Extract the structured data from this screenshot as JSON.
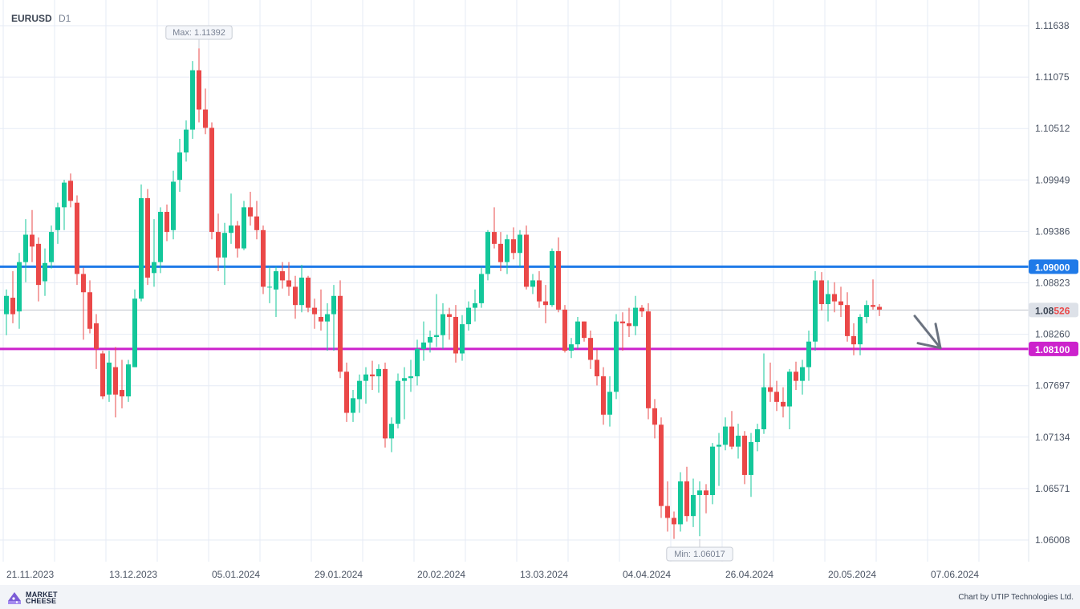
{
  "header": {
    "symbol": "EURUSD",
    "timeframe": "D1"
  },
  "footer": {
    "logo_line1": "MARKET",
    "logo_line2": "CHEESE",
    "credit": "Chart by UTIP Technologies Ltd."
  },
  "chart_data": {
    "type": "candlestick",
    "y_axis": {
      "range": [
        1.0583,
        1.1182
      ],
      "ticks": [
        1.11638,
        1.11075,
        1.10512,
        1.09949,
        1.09386,
        1.08823,
        1.0826,
        1.07697,
        1.07134,
        1.06571,
        1.06008
      ],
      "tick_labels": [
        "1.11638",
        "1.11075",
        "1.10512",
        "1.09949",
        "1.09386",
        "1.08823",
        "1.08260",
        "1.07697",
        "1.07134",
        "1.06571",
        "1.06008"
      ]
    },
    "x_axis": {
      "labels": [
        "21.11.2023",
        "13.12.2023",
        "05.01.2024",
        "29.01.2024",
        "20.02.2024",
        "13.03.2024",
        "04.04.2024",
        "26.04.2024",
        "20.05.2024",
        "07.06.2024"
      ],
      "label_bar_index": [
        0,
        16,
        32,
        48,
        64,
        80,
        96,
        112,
        128,
        144
      ],
      "total_bars": 160
    },
    "levels": [
      {
        "price": 1.09,
        "label": "1.09000",
        "color": "#1f7ae8"
      },
      {
        "price": 1.081,
        "label": "1.08100",
        "color": "#cc22cc"
      }
    ],
    "current_price": {
      "price": 1.08526,
      "label_prefix": "1.08",
      "label_suffix": "526",
      "color": "#c0c4cc"
    },
    "max_marker": {
      "label": "Max: 1.11392",
      "price": 1.11392,
      "bar_index": 30
    },
    "min_marker": {
      "label": "Min: 1.06017",
      "price": 1.06017,
      "bar_index": 108
    },
    "forecast_arrow": {
      "from_bar": 141.5,
      "from_price": 1.0846,
      "to_bar": 145.5,
      "to_price": 1.0811,
      "color": "#6b7380",
      "direction": "down"
    },
    "colors": {
      "bull": "#13c79a",
      "bear": "#ea4848",
      "grid": "#e6ebf5"
    },
    "candles": [
      [
        1.0848,
        1.0875,
        1.0825,
        1.0868
      ],
      [
        1.0866,
        1.0895,
        1.0838,
        1.0848
      ],
      [
        1.0851,
        1.0915,
        1.0832,
        1.0905
      ],
      [
        1.0905,
        1.0952,
        1.0883,
        1.0935
      ],
      [
        1.0935,
        1.0962,
        1.0905,
        1.0922
      ],
      [
        1.0925,
        1.0932,
        1.0862,
        1.088
      ],
      [
        1.0884,
        1.092,
        1.0868,
        1.0904
      ],
      [
        1.0905,
        1.0945,
        1.0898,
        1.0938
      ],
      [
        1.094,
        1.097,
        1.0925,
        1.0965
      ],
      [
        1.0965,
        1.0995,
        1.094,
        1.0992
      ],
      [
        1.0994,
        1.1002,
        1.0965,
        1.0972
      ],
      [
        1.097,
        1.0978,
        1.088,
        1.0892
      ],
      [
        1.0892,
        1.0899,
        1.082,
        1.0872
      ],
      [
        1.0872,
        1.0885,
        1.0827,
        1.0832
      ],
      [
        1.0838,
        1.0848,
        1.0788,
        1.081
      ],
      [
        1.0805,
        1.0808,
        1.0755,
        1.0758
      ],
      [
        1.076,
        1.0808,
        1.0752,
        1.0795
      ],
      [
        1.079,
        1.0812,
        1.0735,
        1.076
      ],
      [
        1.0765,
        1.0798,
        1.0745,
        1.0758
      ],
      [
        1.0758,
        1.0798,
        1.0752,
        1.0793
      ],
      [
        1.079,
        1.0875,
        1.079,
        1.0865
      ],
      [
        1.0865,
        1.099,
        1.0862,
        1.0975
      ],
      [
        1.0975,
        1.0985,
        1.088,
        1.0888
      ],
      [
        1.0893,
        1.0952,
        1.0878,
        1.0905
      ],
      [
        1.0905,
        1.0965,
        1.0893,
        1.096
      ],
      [
        1.096,
        1.0968,
        1.0928,
        1.0938
      ],
      [
        1.094,
        1.1005,
        1.093,
        1.0993
      ],
      [
        1.0995,
        1.104,
        1.0982,
        1.1025
      ],
      [
        1.1025,
        1.106,
        1.1015,
        1.105
      ],
      [
        1.105,
        1.1125,
        1.104,
        1.1115
      ],
      [
        1.1115,
        1.1139,
        1.1058,
        1.1072
      ],
      [
        1.1072,
        1.1095,
        1.1045,
        1.1052
      ],
      [
        1.1052,
        1.1058,
        1.093,
        1.0938
      ],
      [
        1.0938,
        1.0958,
        1.0895,
        1.091
      ],
      [
        1.091,
        1.0948,
        1.088,
        1.0937
      ],
      [
        1.0937,
        1.098,
        1.0925,
        1.0945
      ],
      [
        1.0945,
        1.095,
        1.091,
        1.092
      ],
      [
        1.092,
        1.0972,
        1.0918,
        1.0965
      ],
      [
        1.0965,
        1.0982,
        1.0945,
        1.0955
      ],
      [
        1.0955,
        1.0972,
        1.093,
        1.094
      ],
      [
        1.094,
        1.0945,
        1.087,
        1.0878
      ],
      [
        1.0878,
        1.09,
        1.086,
        1.0878
      ],
      [
        1.0875,
        1.09,
        1.0845,
        1.0895
      ],
      [
        1.0895,
        1.0905,
        1.0876,
        1.0885
      ],
      [
        1.0885,
        1.0905,
        1.0868,
        1.0878
      ],
      [
        1.0878,
        1.089,
        1.0843,
        1.0858
      ],
      [
        1.0858,
        1.0902,
        1.085,
        1.0888
      ],
      [
        1.0888,
        1.089,
        1.085,
        1.0855
      ],
      [
        1.0855,
        1.0865,
        1.0832,
        1.0848
      ],
      [
        1.0845,
        1.0875,
        1.083,
        1.084
      ],
      [
        1.084,
        1.086,
        1.0808,
        1.0848
      ],
      [
        1.0848,
        1.088,
        1.0808,
        1.0868
      ],
      [
        1.0868,
        1.0885,
        1.0778,
        1.0785
      ],
      [
        1.0785,
        1.0795,
        1.073,
        1.074
      ],
      [
        1.074,
        1.0765,
        1.073,
        1.0756
      ],
      [
        1.0755,
        1.0782,
        1.074,
        1.0775
      ],
      [
        1.0775,
        1.079,
        1.075,
        1.0782
      ],
      [
        1.0782,
        1.0797,
        1.0765,
        1.078
      ],
      [
        1.078,
        1.0793,
        1.0762,
        1.0788
      ],
      [
        1.0788,
        1.0795,
        1.0702,
        1.0712
      ],
      [
        1.0712,
        1.0735,
        1.0697,
        1.0728
      ],
      [
        1.0728,
        1.0783,
        1.0723,
        1.0775
      ],
      [
        1.0775,
        1.079,
        1.0733,
        1.0778
      ],
      [
        1.0778,
        1.0798,
        1.0763,
        1.078
      ],
      [
        1.078,
        1.082,
        1.077,
        1.081
      ],
      [
        1.081,
        1.084,
        1.0797,
        1.0817
      ],
      [
        1.0817,
        1.083,
        1.0806,
        1.0823
      ],
      [
        1.0823,
        1.087,
        1.0812,
        1.0825
      ],
      [
        1.0825,
        1.086,
        1.081,
        1.0848
      ],
      [
        1.0848,
        1.0855,
        1.082,
        1.0845
      ],
      [
        1.0845,
        1.0858,
        1.0795,
        1.0805
      ],
      [
        1.0805,
        1.0847,
        1.0797,
        1.0837
      ],
      [
        1.0837,
        1.0862,
        1.083,
        1.0855
      ],
      [
        1.0855,
        1.0875,
        1.084,
        1.086
      ],
      [
        1.086,
        1.09,
        1.0855,
        1.0892
      ],
      [
        1.0892,
        1.094,
        1.0885,
        1.0938
      ],
      [
        1.0938,
        1.0965,
        1.092,
        1.0925
      ],
      [
        1.0925,
        1.0938,
        1.0895,
        1.0905
      ],
      [
        1.0905,
        1.0935,
        1.0892,
        1.093
      ],
      [
        1.093,
        1.0943,
        1.0908,
        1.0915
      ],
      [
        1.0915,
        1.094,
        1.09,
        1.0935
      ],
      [
        1.0935,
        1.0945,
        1.0875,
        1.0878
      ],
      [
        1.0878,
        1.0892,
        1.087,
        1.0885
      ],
      [
        1.0885,
        1.0895,
        1.0855,
        1.0862
      ],
      [
        1.0862,
        1.088,
        1.0838,
        1.0858
      ],
      [
        1.0858,
        1.092,
        1.0856,
        1.0917
      ],
      [
        1.0917,
        1.0932,
        1.085,
        1.0853
      ],
      [
        1.0853,
        1.0858,
        1.0806,
        1.0808
      ],
      [
        1.0808,
        1.0822,
        1.08,
        1.0815
      ],
      [
        1.0815,
        1.0845,
        1.081,
        1.084
      ],
      [
        1.084,
        1.084,
        1.0818,
        1.0822
      ],
      [
        1.0822,
        1.083,
        1.0788,
        1.0798
      ],
      [
        1.0798,
        1.081,
        1.077,
        1.078
      ],
      [
        1.078,
        1.079,
        1.0727,
        1.0738
      ],
      [
        1.0738,
        1.078,
        1.0725,
        1.0763
      ],
      [
        1.0763,
        1.0848,
        1.0755,
        1.084
      ],
      [
        1.084,
        1.085,
        1.0808,
        1.0838
      ],
      [
        1.0838,
        1.0855,
        1.0823,
        1.0835
      ],
      [
        1.0835,
        1.0868,
        1.0825,
        1.0855
      ],
      [
        1.0855,
        1.0858,
        1.0845,
        1.0851
      ],
      [
        1.0851,
        1.086,
        1.0733,
        1.0745
      ],
      [
        1.0745,
        1.0755,
        1.0712,
        1.0727
      ],
      [
        1.0727,
        1.0735,
        1.0625,
        1.0638
      ],
      [
        1.0638,
        1.0665,
        1.061,
        1.0625
      ],
      [
        1.0625,
        1.0632,
        1.0602,
        1.0618
      ],
      [
        1.0618,
        1.0675,
        1.061,
        1.0665
      ],
      [
        1.0665,
        1.0681,
        1.0621,
        1.0627
      ],
      [
        1.0627,
        1.0668,
        1.0615,
        1.065
      ],
      [
        1.065,
        1.0665,
        1.0605,
        1.0655
      ],
      [
        1.0655,
        1.0662,
        1.063,
        1.065
      ],
      [
        1.065,
        1.0707,
        1.064,
        1.0703
      ],
      [
        1.0703,
        1.0718,
        1.066,
        1.0705
      ],
      [
        1.0705,
        1.0735,
        1.0699,
        1.0725
      ],
      [
        1.0725,
        1.0742,
        1.07,
        1.0703
      ],
      [
        1.0703,
        1.0728,
        1.069,
        1.0715
      ],
      [
        1.0715,
        1.072,
        1.0662,
        1.0672
      ],
      [
        1.0672,
        1.0718,
        1.0648,
        1.0708
      ],
      [
        1.0708,
        1.0728,
        1.0698,
        1.0722
      ],
      [
        1.0722,
        1.0805,
        1.0717,
        1.0768
      ],
      [
        1.0768,
        1.0795,
        1.0752,
        1.0763
      ],
      [
        1.0763,
        1.0775,
        1.0742,
        1.0752
      ],
      [
        1.0752,
        1.0768,
        1.0735,
        1.0747
      ],
      [
        1.0747,
        1.0788,
        1.0722,
        1.0785
      ],
      [
        1.0785,
        1.0796,
        1.0765,
        1.0775
      ],
      [
        1.0775,
        1.0798,
        1.076,
        1.079
      ],
      [
        1.079,
        1.083,
        1.0775,
        1.0818
      ],
      [
        1.0818,
        1.0895,
        1.0808,
        1.0885
      ],
      [
        1.0885,
        1.0894,
        1.0852,
        1.0859
      ],
      [
        1.0859,
        1.0885,
        1.084,
        1.087
      ],
      [
        1.087,
        1.0883,
        1.085,
        1.0862
      ],
      [
        1.0862,
        1.0878,
        1.0845,
        1.0858
      ],
      [
        1.0858,
        1.0872,
        1.0818,
        1.0824
      ],
      [
        1.0824,
        1.0838,
        1.0803,
        1.0815
      ],
      [
        1.0815,
        1.0848,
        1.0803,
        1.0845
      ],
      [
        1.0845,
        1.0863,
        1.0838,
        1.0858
      ],
      [
        1.0858,
        1.0886,
        1.0853,
        1.0856
      ],
      [
        1.0856,
        1.0859,
        1.0846,
        1.0853
      ]
    ]
  }
}
